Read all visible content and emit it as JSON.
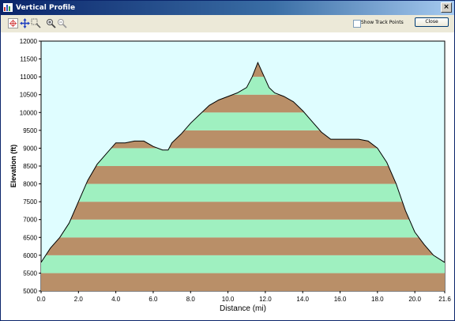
{
  "window": {
    "title": "Vertical Profile",
    "close_glyph": "×"
  },
  "toolbar": {
    "tools": [
      {
        "name": "select-crosshair-icon",
        "icon": "crosshair-icon",
        "active": true
      },
      {
        "name": "pan-icon",
        "icon": "pan-arrows-icon",
        "active": false
      },
      {
        "name": "zoom-box-icon",
        "icon": "zoom-box-icon",
        "active": false
      },
      {
        "name": "zoom-in-icon",
        "icon": "magnifier-plus-icon",
        "active": false
      },
      {
        "name": "zoom-out-icon",
        "icon": "magnifier-minus-icon",
        "active": false
      }
    ],
    "show_track_points_label": "Show Track Points",
    "show_track_points_checked": false,
    "close_label": "Close"
  },
  "chart_data": {
    "type": "area",
    "xlabel": "Distance   (mi)",
    "ylabel": "Elevation (ft)",
    "xlim": [
      0,
      21.6
    ],
    "ylim": [
      5000,
      12000
    ],
    "x_ticks": [
      "0.0",
      "2.0",
      "4.0",
      "6.0",
      "8.0",
      "10.0",
      "12.0",
      "14.0",
      "16.0",
      "18.0",
      "20.0",
      "21.6"
    ],
    "x_tick_values": [
      0,
      2,
      4,
      6,
      8,
      10,
      12,
      14,
      16,
      18,
      20,
      21.6
    ],
    "y_ticks": [
      "5000",
      "5500",
      "6000",
      "6500",
      "7000",
      "7500",
      "8000",
      "8500",
      "9000",
      "9500",
      "10000",
      "10500",
      "11000",
      "11500",
      "12000"
    ],
    "y_tick_values": [
      5000,
      5500,
      6000,
      6500,
      7000,
      7500,
      8000,
      8500,
      9000,
      9500,
      10000,
      10500,
      11000,
      11500,
      12000
    ],
    "band_colors": [
      "#b98f68",
      "#9ff0c0"
    ],
    "band_step": 500,
    "background": "#dffdff",
    "series": [
      {
        "x": [
          0,
          0.5,
          1.0,
          1.5,
          2.0,
          2.5,
          3.0,
          3.5,
          4.0,
          4.5,
          5.0,
          5.5,
          6.0,
          6.5,
          6.8,
          7.0,
          7.5,
          8.0,
          8.5,
          9.0,
          9.5,
          10.0,
          10.5,
          11.0,
          11.3,
          11.6,
          11.9,
          12.2,
          12.5,
          13.0,
          13.5,
          14.0,
          14.5,
          15.0,
          15.5,
          16.0,
          16.5,
          17.0,
          17.5,
          18.0,
          18.5,
          19.0,
          19.5,
          20.0,
          20.5,
          21.0,
          21.6
        ],
        "y": [
          5800,
          6200,
          6500,
          6900,
          7500,
          8100,
          8550,
          8850,
          9150,
          9150,
          9200,
          9200,
          9050,
          8950,
          8950,
          9150,
          9400,
          9700,
          9950,
          10200,
          10350,
          10450,
          10550,
          10700,
          11000,
          11400,
          11050,
          10700,
          10550,
          10450,
          10300,
          10050,
          9750,
          9450,
          9250,
          9250,
          9250,
          9250,
          9200,
          9000,
          8600,
          8000,
          7250,
          6650,
          6300,
          6000,
          5800
        ]
      }
    ]
  }
}
